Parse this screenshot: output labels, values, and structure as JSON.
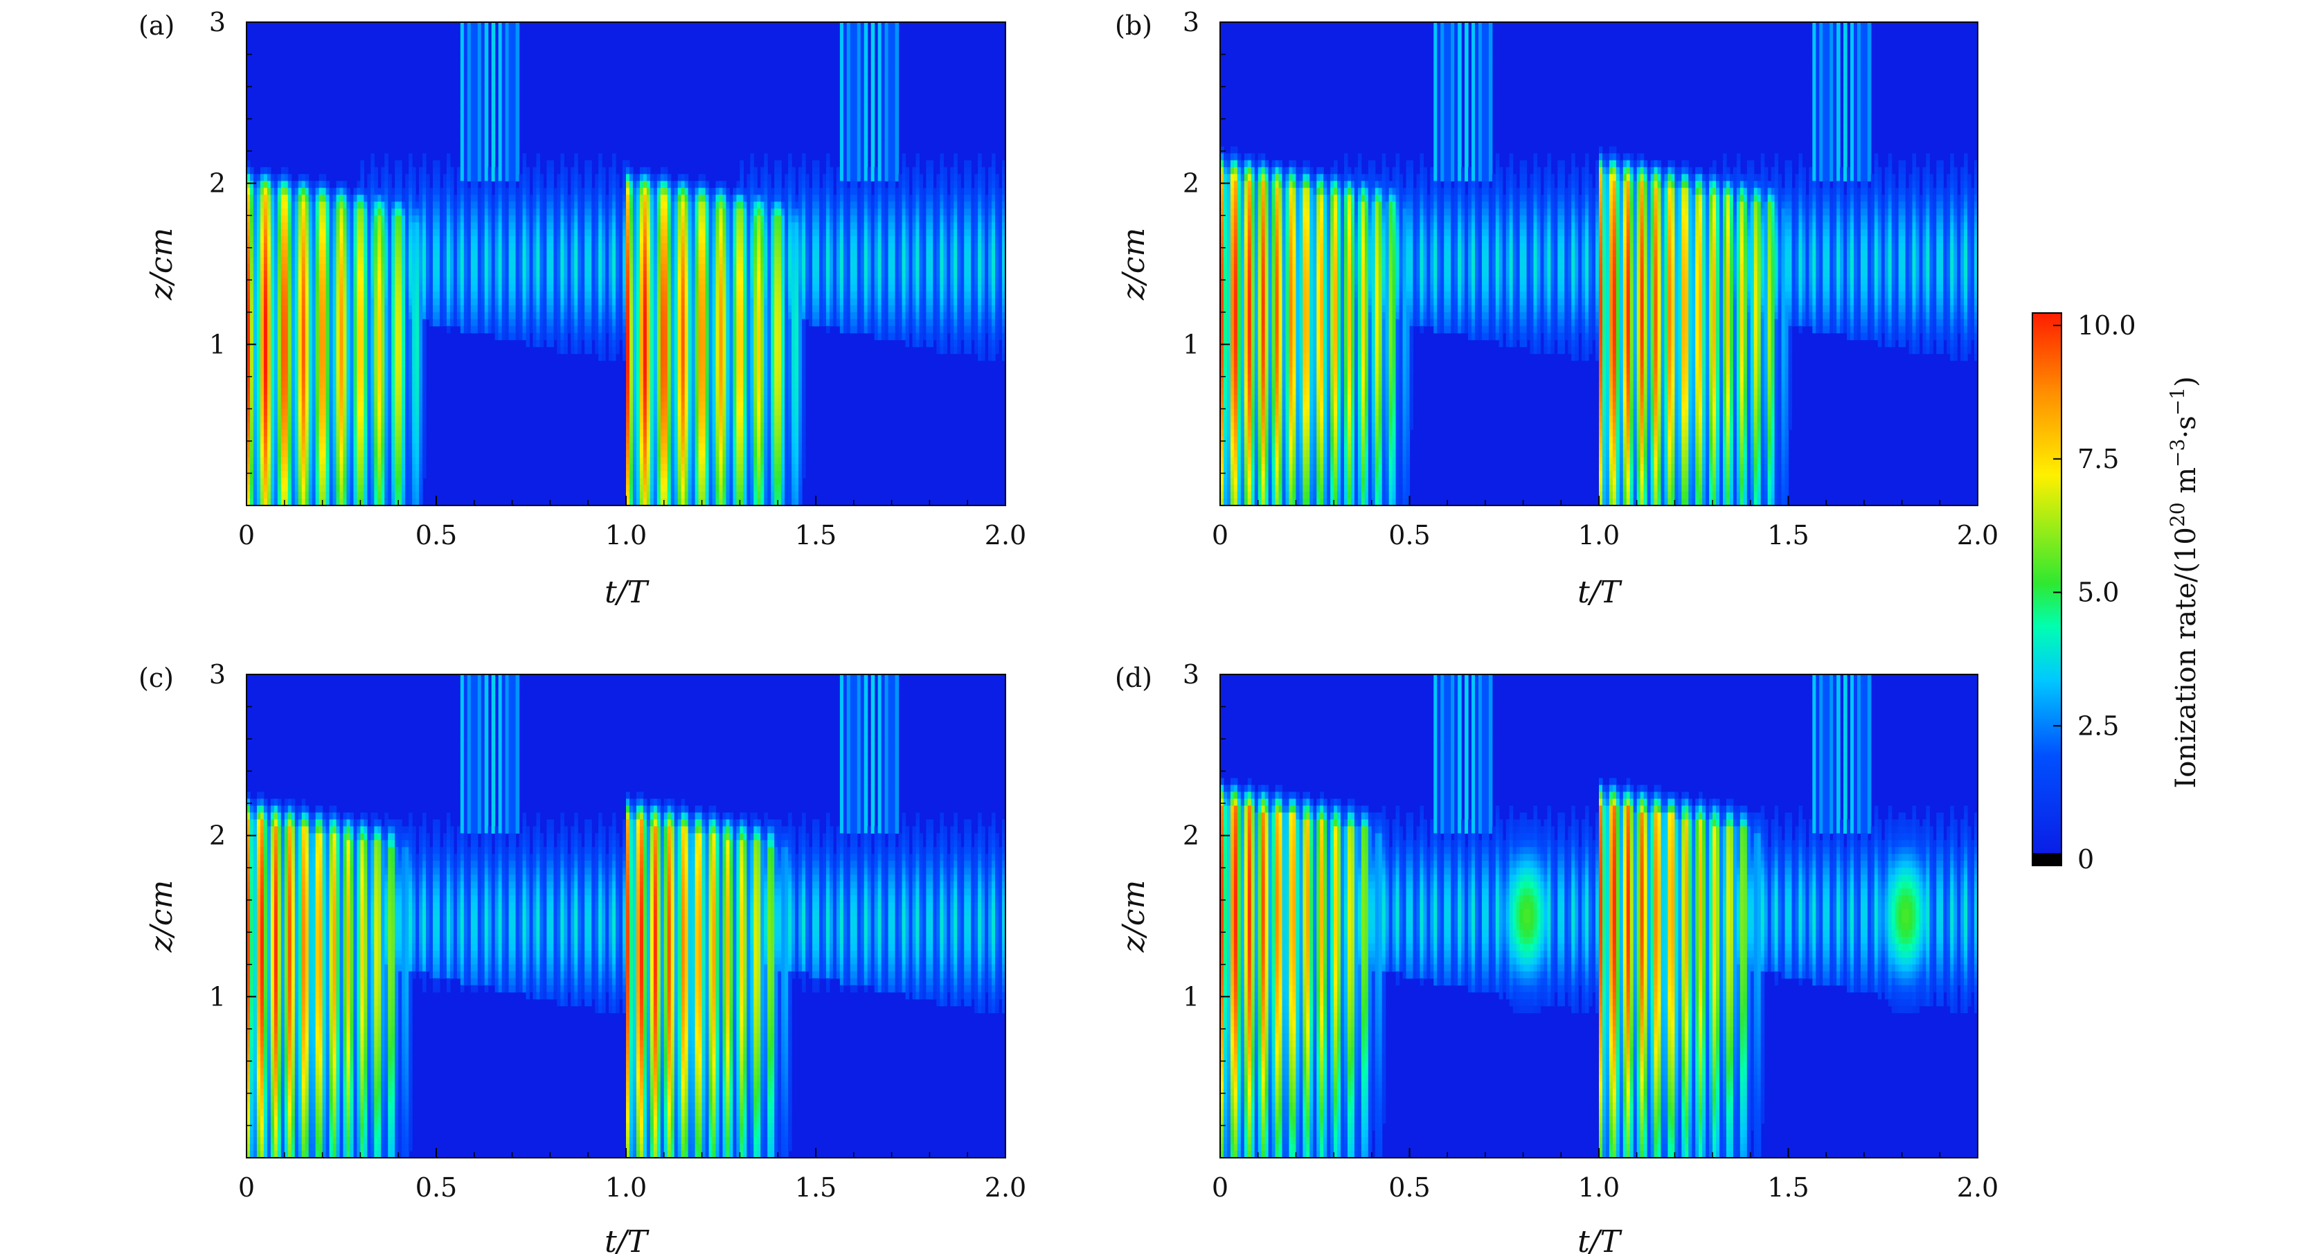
{
  "chart_data": [
    {
      "type": "heatmap",
      "panel_label": "(a)",
      "xlabel": "t/T",
      "ylabel": "z/cm",
      "xlim": [
        0,
        2.0
      ],
      "ylim": [
        0,
        3
      ],
      "x_ticks": [
        "0",
        "0.5",
        "1.0",
        "1.5",
        "2.0"
      ],
      "y_ticks": [
        "1",
        "2",
        "3"
      ],
      "pattern": {
        "peak_z": 1.0,
        "discharge_end_t": 0.42,
        "spike_count": 10,
        "glow_center_z": 1.5,
        "secondary_glow": 0.0,
        "top_z": 1.95
      }
    },
    {
      "type": "heatmap",
      "panel_label": "(b)",
      "xlabel": "t/T",
      "ylabel": "z/cm",
      "xlim": [
        0,
        2.0
      ],
      "ylim": [
        0,
        3
      ],
      "x_ticks": [
        "0",
        "0.5",
        "1.0",
        "1.5",
        "2.0"
      ],
      "y_ticks": [
        "1",
        "2",
        "3"
      ],
      "pattern": {
        "peak_z": 1.2,
        "discharge_end_t": 0.45,
        "spike_count": 14,
        "glow_center_z": 1.5,
        "secondary_glow": 0.0,
        "top_z": 2.05
      }
    },
    {
      "type": "heatmap",
      "panel_label": "(c)",
      "xlabel": "t/T",
      "ylabel": "z/cm",
      "xlim": [
        0,
        2.0
      ],
      "ylim": [
        0,
        3
      ],
      "x_ticks": [
        "0",
        "0.5",
        "1.0",
        "1.5",
        "2.0"
      ],
      "y_ticks": [
        "1",
        "2",
        "3"
      ],
      "pattern": {
        "peak_z": 1.3,
        "discharge_end_t": 0.38,
        "spike_count": 12,
        "glow_center_z": 1.45,
        "secondary_glow": 0.0,
        "top_z": 2.1
      }
    },
    {
      "type": "heatmap",
      "panel_label": "(d)",
      "xlabel": "t/T",
      "ylabel": "z/cm",
      "xlim": [
        0,
        2.0
      ],
      "ylim": [
        0,
        3
      ],
      "x_ticks": [
        "0",
        "0.5",
        "1.0",
        "1.5",
        "2.0"
      ],
      "y_ticks": [
        "1",
        "2",
        "3"
      ],
      "pattern": {
        "peak_z": 1.55,
        "discharge_end_t": 0.38,
        "spike_count": 12,
        "glow_center_z": 1.5,
        "secondary_glow": 0.55,
        "top_z": 2.2
      }
    }
  ],
  "colorbar": {
    "label_prefix": "Ionization rate/(10",
    "label_exp": "20",
    "label_units_a": " m",
    "label_units_exp1": "−3",
    "label_units_b": "·s",
    "label_units_exp2": "−1",
    "label_suffix": ")",
    "ticks": [
      "0",
      "2.5",
      "5.0",
      "7.5",
      "10.0"
    ],
    "tick_values": [
      0,
      2.5,
      5.0,
      7.5,
      10.0
    ],
    "range": [
      0,
      10.0
    ]
  },
  "colormap": [
    "#000000",
    "#0a1ee6",
    "#0050ff",
    "#00c8ff",
    "#00ffb0",
    "#30e830",
    "#fff000",
    "#ff9000",
    "#ff1e00"
  ]
}
